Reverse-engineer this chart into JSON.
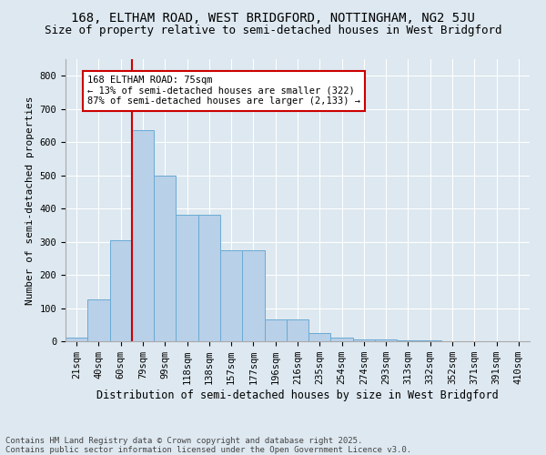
{
  "title1": "168, ELTHAM ROAD, WEST BRIDGFORD, NOTTINGHAM, NG2 5JU",
  "title2": "Size of property relative to semi-detached houses in West Bridgford",
  "xlabel": "Distribution of semi-detached houses by size in West Bridgford",
  "ylabel": "Number of semi-detached properties",
  "categories": [
    "21sqm",
    "40sqm",
    "60sqm",
    "79sqm",
    "99sqm",
    "118sqm",
    "138sqm",
    "157sqm",
    "177sqm",
    "196sqm",
    "216sqm",
    "235sqm",
    "254sqm",
    "274sqm",
    "293sqm",
    "313sqm",
    "332sqm",
    "352sqm",
    "371sqm",
    "391sqm",
    "410sqm"
  ],
  "values": [
    10,
    125,
    305,
    635,
    500,
    380,
    380,
    275,
    275,
    65,
    65,
    25,
    10,
    5,
    5,
    3,
    2,
    1,
    0,
    0,
    0
  ],
  "bar_color": "#b8d0e8",
  "bar_edge_color": "#6aaad4",
  "vline_color": "#cc0000",
  "vline_x_index": 3,
  "annotation_text": "168 ELTHAM ROAD: 75sqm\n← 13% of semi-detached houses are smaller (322)\n87% of semi-detached houses are larger (2,133) →",
  "annotation_box_facecolor": "white",
  "annotation_box_edgecolor": "#cc0000",
  "background_color": "#dde8f0",
  "plot_bg_color": "#dde8f0",
  "footer": "Contains HM Land Registry data © Crown copyright and database right 2025.\nContains public sector information licensed under the Open Government Licence v3.0.",
  "ylim": [
    0,
    850
  ],
  "yticks": [
    0,
    100,
    200,
    300,
    400,
    500,
    600,
    700,
    800
  ],
  "title1_fontsize": 10,
  "title2_fontsize": 9,
  "xlabel_fontsize": 8.5,
  "ylabel_fontsize": 8,
  "tick_fontsize": 7.5,
  "annotation_fontsize": 7.5,
  "footer_fontsize": 6.5
}
